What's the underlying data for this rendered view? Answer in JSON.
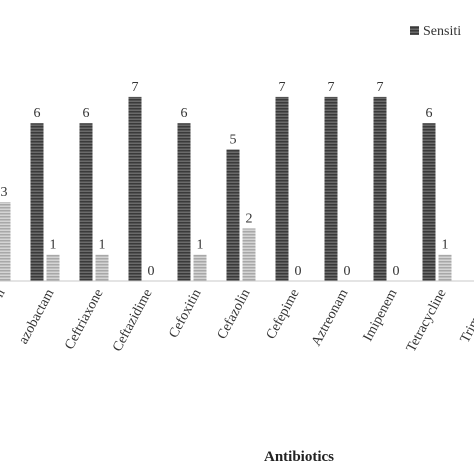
{
  "chart_data": {
    "type": "bar",
    "xlabel": "Antibiotics",
    "ylabel": "",
    "ylim": [
      0,
      7.5
    ],
    "grid": false,
    "legend_position": "top-right",
    "categories": [
      "in",
      "Piperacillin/Tazobactam",
      "Ceftriaxone",
      "Ceftazidime",
      "Cefoxitin",
      "Cefazolin",
      "Cefepime",
      "Aztreonam",
      "Imipenem",
      "Tetracycline",
      "Trimethoprim"
    ],
    "tick_labels": [
      "n",
      "azobactam",
      "Ceftriaxone",
      "Ceftazidime",
      "Cefoxitin",
      "Cefazolin",
      "Cefepime",
      "Aztreonam",
      "Imipenem",
      "Tetracycline",
      "Trimethop"
    ],
    "series": [
      {
        "name": "Sensiti",
        "color": "#555555",
        "pattern": "horizontal-stripes-dark",
        "values": [
          null,
          6,
          6,
          7,
          6,
          5,
          7,
          7,
          7,
          6,
          null
        ]
      },
      {
        "name": "",
        "color": "#bbbbbb",
        "pattern": "horizontal-stripes-light",
        "values": [
          3,
          1,
          1,
          0,
          1,
          2,
          0,
          0,
          0,
          1,
          null
        ]
      }
    ]
  }
}
